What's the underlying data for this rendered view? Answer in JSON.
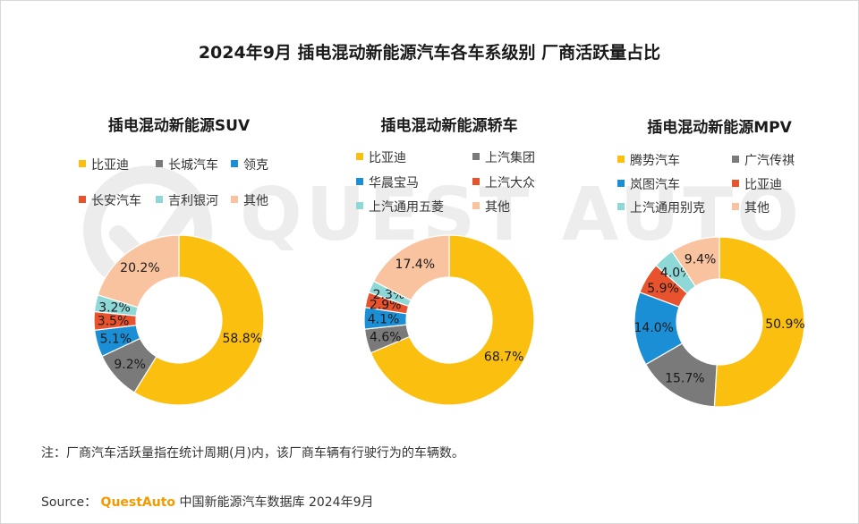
{
  "title": "2024年9月 插电混动新能源汽车各车系级别 厂商活跃量占比",
  "watermark_text": "QUEST AUTO",
  "note": "注：厂商汽车活跃量指在统计周期(月)内，该厂商车辆有行驶行为的车辆数。",
  "source": {
    "label": "Source：",
    "brand": "QuestAuto",
    "text": "中国新能源汽车数据库 2024年9月"
  },
  "colors": {
    "yellow": "#fbbf10",
    "gray": "#7a7a7a",
    "blue": "#1a8fd6",
    "red": "#e8522c",
    "teal": "#8fd8d8",
    "peach": "#f8c39e"
  },
  "chart_data": [
    {
      "type": "pie",
      "title": "插电混动新能源SUV",
      "series": [
        {
          "name": "比亚迪",
          "value": 58.8,
          "label": "58.8%",
          "color": "#fbbf10"
        },
        {
          "name": "长城汽车",
          "value": 9.2,
          "label": "9.2%",
          "color": "#7a7a7a"
        },
        {
          "name": "领克",
          "value": 5.1,
          "label": "5.1%",
          "color": "#1a8fd6"
        },
        {
          "name": "长安汽车",
          "value": 3.5,
          "label": "3.5%",
          "color": "#e8522c"
        },
        {
          "name": "吉利银河",
          "value": 3.2,
          "label": "3.2%",
          "color": "#8fd8d8"
        },
        {
          "name": "其他",
          "value": 20.2,
          "label": "20.2%",
          "color": "#f8c39e"
        }
      ]
    },
    {
      "type": "pie",
      "title": "插电混动新能源轿车",
      "series": [
        {
          "name": "比亚迪",
          "value": 68.7,
          "label": "68.7%",
          "color": "#fbbf10"
        },
        {
          "name": "上汽集团",
          "value": 4.6,
          "label": "4.6%",
          "color": "#7a7a7a"
        },
        {
          "name": "华晨宝马",
          "value": 4.1,
          "label": "4.1%",
          "color": "#1a8fd6"
        },
        {
          "name": "上汽大众",
          "value": 2.9,
          "label": "2.9%",
          "color": "#e8522c"
        },
        {
          "name": "上汽通用五菱",
          "value": 2.3,
          "label": "2.3%",
          "color": "#8fd8d8"
        },
        {
          "name": "其他",
          "value": 17.4,
          "label": "17.4%",
          "color": "#f8c39e"
        }
      ]
    },
    {
      "type": "pie",
      "title": "插电混动新能源MPV",
      "series": [
        {
          "name": "腾势汽车",
          "value": 50.9,
          "label": "50.9%",
          "color": "#fbbf10"
        },
        {
          "name": "广汽传祺",
          "value": 15.7,
          "label": "15.7%",
          "color": "#7a7a7a"
        },
        {
          "name": "岚图汽车",
          "value": 14.0,
          "label": "14.0%",
          "color": "#1a8fd6"
        },
        {
          "name": "比亚迪",
          "value": 5.9,
          "label": "5.9%",
          "color": "#e8522c"
        },
        {
          "name": "上汽通用别克",
          "value": 4.0,
          "label": "4.0%",
          "color": "#8fd8d8"
        },
        {
          "name": "其他",
          "value": 9.4,
          "label": "9.4%",
          "color": "#f8c39e"
        }
      ]
    }
  ]
}
